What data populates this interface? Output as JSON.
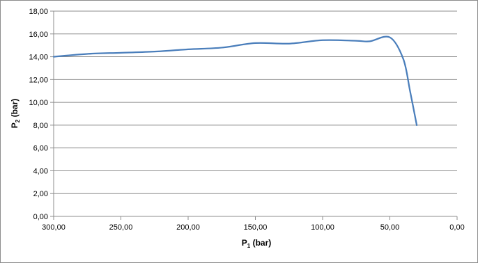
{
  "chart_data": {
    "type": "line",
    "xlabel": {
      "main": "P",
      "sub": "1",
      "suffix": " (bar)"
    },
    "ylabel": {
      "main": "P",
      "sub": "2",
      "suffix": " (bar)"
    },
    "xlim": [
      300,
      0
    ],
    "x_reversed": true,
    "ylim": [
      0,
      18
    ],
    "x_ticks": [
      300,
      250,
      200,
      150,
      100,
      50,
      0
    ],
    "x_tick_labels": [
      "300,00",
      "250,00",
      "200,00",
      "150,00",
      "100,00",
      "50,00",
      "0,00"
    ],
    "y_ticks": [
      0,
      2,
      4,
      6,
      8,
      10,
      12,
      14,
      16,
      18
    ],
    "y_tick_labels": [
      "0,00",
      "2,00",
      "4,00",
      "6,00",
      "8,00",
      "10,00",
      "12,00",
      "14,00",
      "16,00",
      "18,00"
    ],
    "grid": true,
    "legend": "none",
    "series": [
      {
        "color": "#4a7ebb",
        "x": [
          300,
          275,
          250,
          225,
          200,
          175,
          150,
          125,
          100,
          75,
          65,
          50,
          40,
          35,
          30
        ],
        "y": [
          14.0,
          14.25,
          14.35,
          14.45,
          14.65,
          14.8,
          15.2,
          15.15,
          15.45,
          15.4,
          15.35,
          15.7,
          13.8,
          11.0,
          8.0
        ]
      }
    ]
  }
}
